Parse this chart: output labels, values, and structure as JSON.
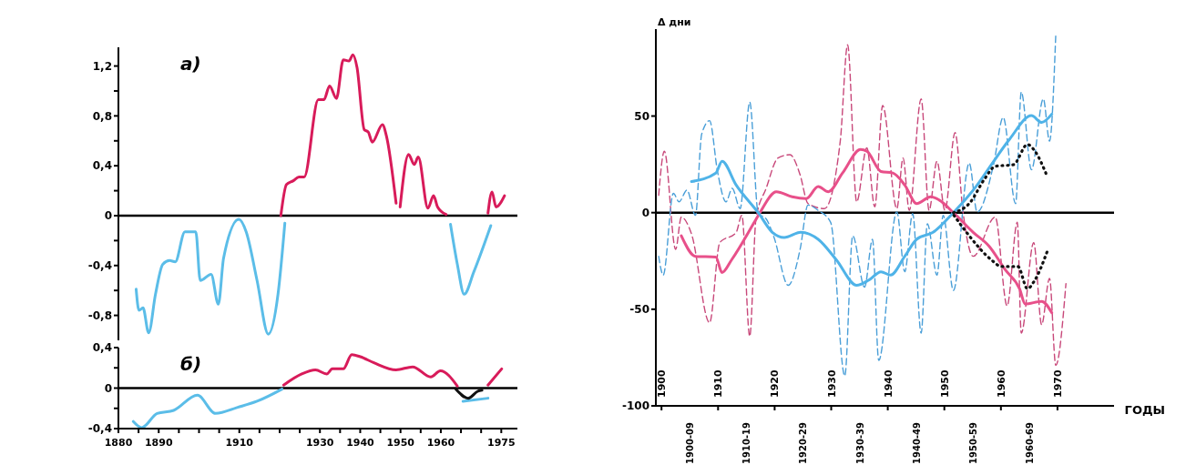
{
  "chart_data": [
    {
      "type": "line",
      "title": "а)",
      "xlim": [
        1880,
        1979
      ],
      "tick_labels": "y",
      "ylim": [
        -1.0,
        1.35
      ],
      "yticks": [
        {
          "value": -0.8,
          "label": "-0,8"
        },
        {
          "value": -0.6,
          "label": null
        },
        {
          "value": -0.4,
          "label": "-0,4"
        },
        {
          "value": -0.2,
          "label": null
        },
        0,
        {
          "value": 0.2,
          "label": null
        },
        {
          "value": 0.4,
          "label": "0,4"
        },
        {
          "value": 0.6,
          "label": null
        },
        {
          "value": 0.8,
          "label": "0,8"
        },
        {
          "value": 1.0,
          "label": null
        },
        {
          "value": 1.2,
          "label": "1,2"
        }
      ],
      "ref_lines": [
        {
          "axis": "y",
          "value": 0,
          "color": "#000000"
        }
      ],
      "series": [
        {
          "color": "#5bbde8",
          "x": [
            1884.4,
            1885.1,
            1886.1,
            1887.5,
            1889.2,
            1891,
            1892.7,
            1894.1,
            1896.5,
            1899.2,
            1900.3,
            1903,
            1904.8,
            1906.1,
            1909.9,
            1911.7,
            1914.4,
            1917.2,
            1919.6,
            1921.3,
            1940,
            1962.4,
            1964.1,
            1965.8,
            1968.2,
            1972.4
          ],
          "values": [
            -0.59,
            -0.76,
            -0.74,
            -0.94,
            -0.63,
            -0.39,
            -0.36,
            -0.37,
            -0.13,
            -0.13,
            -0.52,
            -0.47,
            -0.71,
            -0.34,
            -0.03,
            -0.13,
            -0.52,
            -0.95,
            -0.63,
            -0.06,
            null,
            -0.07,
            -0.39,
            -0.63,
            -0.45,
            -0.08
          ]
        },
        {
          "color": "#d81b5a",
          "x": [
            1920.3,
            1921.7,
            1923.4,
            1924.8,
            1926.1,
            1929.6,
            1931,
            1932.4,
            1934.1,
            1935.8,
            1937.2,
            1938.2,
            1939.2,
            1941,
            1942,
            1943,
            1945.5,
            1946.5,
            1948.9,
            1949.4,
            1949.9,
            1952,
            1953.4,
            1954.4,
            1956.8,
            1958.2,
            1959.2,
            1961.3,
            1966,
            1971.7,
            1972.7,
            1973.7,
            1975.8
          ],
          "values": [
            0,
            0.25,
            0.28,
            0.31,
            0.31,
            0.93,
            0.93,
            1.04,
            0.94,
            1.25,
            1.24,
            1.29,
            1.19,
            0.69,
            0.67,
            0.59,
            0.73,
            0.64,
            0.1,
            null,
            0.07,
            0.49,
            0.41,
            0.47,
            0.06,
            0.16,
            0.07,
            0.01,
            null,
            0.02,
            0.19,
            0.07,
            0.16
          ]
        }
      ]
    },
    {
      "type": "line",
      "title": "б)",
      "xlim": [
        1880,
        1979
      ],
      "xticks": [
        1880,
        {
          "value": 1885,
          "label": null
        },
        1890,
        {
          "value": 1895,
          "label": null
        },
        {
          "value": 1900,
          "label": null
        },
        {
          "value": 1905,
          "label": null
        },
        1910,
        {
          "value": 1915,
          "label": null
        },
        {
          "value": 1920,
          "label": null
        },
        {
          "value": 1925,
          "label": null
        },
        1930,
        {
          "value": 1935,
          "label": null
        },
        1940,
        {
          "value": 1945,
          "label": null
        },
        1950,
        {
          "value": 1955,
          "label": null
        },
        1960,
        {
          "value": 1965,
          "label": null
        },
        {
          "value": 1970,
          "label": null
        },
        1975
      ],
      "ylim": [
        -0.4,
        0.4
      ],
      "yticks": [
        {
          "value": -0.4,
          "label": "-0,4"
        },
        {
          "value": -0.2,
          "label": null
        },
        0,
        {
          "value": 0.2,
          "label": null
        },
        {
          "value": 0.4,
          "label": "0,4"
        }
      ],
      "ref_lines": [
        {
          "axis": "y",
          "value": 0,
          "color": "#000000"
        }
      ],
      "series": [
        {
          "color": "#5bbde8",
          "x": [
            1883.7,
            1885.8,
            1889.6,
            1893.7,
            1899.6,
            1904.1,
            1909.6,
            1914.4,
            1920.6,
            1940,
            1965.5,
            1971.7
          ],
          "values": [
            -0.33,
            -0.39,
            -0.25,
            -0.22,
            -0.07,
            -0.25,
            -0.19,
            -0.13,
            -0.01,
            null,
            -0.13,
            -0.1
          ]
        },
        {
          "color": "#d81b5a",
          "x": [
            1921,
            1925.5,
            1928.9,
            1931.7,
            1933.1,
            1935.8,
            1937.9,
            1940,
            1943.4,
            1948.9,
            1953,
            1957.5,
            1959.9,
            1964.1,
            1968,
            1971.7,
            1975.1
          ],
          "values": [
            0.03,
            0.14,
            0.18,
            0.14,
            0.19,
            0.19,
            0.33,
            0.31,
            0.25,
            0.18,
            0.21,
            0.11,
            0.17,
            0.02,
            null,
            0.03,
            0.19
          ]
        },
        {
          "color": "#111111",
          "x": [
            1963.7,
            1966.8,
            1969.2,
            1970.2
          ],
          "values": [
            -0.01,
            -0.1,
            -0.03,
            -0.02
          ]
        }
      ]
    },
    {
      "type": "line",
      "xlabel": "ГОДЫ",
      "ylabel": "Δ дни",
      "xlim": [
        1899,
        1980
      ],
      "xticks": [
        1900,
        1910,
        1920,
        1930,
        1940,
        1950,
        1960,
        1970
      ],
      "annotations": [
        "1900-09",
        "1910-19",
        "1920-29",
        "1930-39",
        "1940-49",
        "1950-59",
        "1960-69"
      ],
      "ylim": [
        -100,
        95
      ],
      "yticks": [
        -100,
        -50,
        0,
        50
      ],
      "ref_lines": [
        {
          "axis": "y",
          "value": 0,
          "color": "#000000"
        }
      ],
      "series": [
        {
          "color": "#c8487a",
          "line_style": "dashed",
          "x": [
            1899.5,
            1900.5,
            1902.5,
            1903.5,
            1905.3,
            1908.5,
            1910.3,
            1913.2,
            1914.2,
            1915.6,
            1916.7,
            1918.5,
            1920.6,
            1922.7,
            1924.5,
            1925.9,
            1928.8,
            1931.6,
            1932.9,
            1934.5,
            1936.3,
            1937.7,
            1939.1,
            1941.6,
            1942.7,
            1943.8,
            1945.9,
            1947.3,
            1948.7,
            1950.1,
            1951.9,
            1953.3,
            1955.1,
            1959,
            1961.1,
            1962.9,
            1963.6,
            1965.8,
            1967.2,
            1968.6,
            1969.7,
            1971.5
          ],
          "values": [
            9,
            31.8,
            -19,
            -2.3,
            -11,
            -57,
            -15.5,
            -10.2,
            -1.4,
            -64,
            -3.2,
            12.6,
            28.3,
            30,
            19.6,
            4.7,
            2.1,
            37,
            86.9,
            5.6,
            33.6,
            3,
            55.4,
            2.1,
            28.3,
            1.2,
            58.9,
            1.2,
            26.6,
            1.2,
            41.4,
            0.3,
            -22.6,
            -2.3,
            -48.2,
            -5,
            -62.4,
            -15.5,
            -58,
            -34,
            -79,
            -36.7
          ]
        },
        {
          "color": "#4a9fd8",
          "line_style": "dashed",
          "x": [
            1899.5,
            1900.3,
            1902.1,
            1903.1,
            1904.5,
            1906,
            1907.1,
            1908.5,
            1909.9,
            1911.4,
            1912.5,
            1913.9,
            1915.6,
            1917.1,
            1918.5,
            1919.9,
            1922.4,
            1924.5,
            1925.9,
            1927.7,
            1929.9,
            1932.4,
            1933.8,
            1935.9,
            1937.3,
            1938.4,
            1941.6,
            1943,
            1944.4,
            1945.9,
            1947,
            1948.7,
            1949.8,
            1951.6,
            1954.4,
            1955.8,
            1958.7,
            1960.4,
            1962.6,
            1963.6,
            1965.4,
            1967.5,
            1968.6,
            1969.7
          ],
          "values": [
            -22.6,
            -32.3,
            10,
            5.6,
            11.7,
            -1.4,
            40.6,
            47.6,
            21.3,
            5.6,
            12.6,
            2.1,
            57.2,
            -0.5,
            -3.2,
            -12.9,
            -37.6,
            -19,
            3.9,
            1.2,
            -5,
            -84.5,
            -12,
            -38.5,
            -13.8,
            -76.5,
            0.4,
            -30.6,
            -0.5,
            -62.4,
            -5.8,
            -32.3,
            -1.4,
            -40.3,
            25.7,
            0.3,
            24.8,
            49.3,
            4.7,
            62.4,
            22.2,
            58.9,
            37,
            92.1
          ]
        },
        {
          "color": "#e8508a",
          "x": [
            1903.5,
            1906,
            1909.6,
            1910.7,
            1912.4,
            1916.4,
            1917.4,
            1920.3,
            1923.1,
            1925.6,
            1927.7,
            1929.5,
            1932,
            1935.2,
            1936.3,
            1938.8,
            1940.9,
            1943,
            1945.1,
            1947.6,
            1949.1,
            1951.6,
            1955.1,
            1957.9,
            1960.8,
            1963.3,
            1964.3,
            1967.2,
            1969
          ],
          "values": [
            -12,
            -22.6,
            -23,
            -31,
            -24.4,
            -5,
            0,
            10.8,
            8.2,
            7.3,
            13.5,
            10.8,
            20.5,
            32.7,
            31.8,
            21.3,
            20.5,
            14.3,
            4.7,
            8.2,
            6.5,
            0,
            -10.2,
            -17.3,
            -29.7,
            -39.4,
            -47.3,
            -45.9,
            -51.8
          ]
        },
        {
          "color": "#4fb3e8",
          "x": [
            1905.3,
            1909.6,
            1910.7,
            1913.2,
            1917.1,
            1919.6,
            1921.7,
            1924.6,
            1927.7,
            1930.9,
            1934.5,
            1936.6,
            1938.8,
            1940.5,
            1943,
            1945.1,
            1948,
            1951.6,
            1955.8,
            1958.3,
            1961.5,
            1965.4,
            1967.2,
            1969
          ],
          "values": [
            16.1,
            20.5,
            26.6,
            14.3,
            0,
            -10.2,
            -12.9,
            -10.2,
            -13.8,
            -24.4,
            -37.6,
            -35,
            -30.6,
            -32.3,
            -22.6,
            -13.8,
            -10.2,
            0,
            14.3,
            24.8,
            37.9,
            50.2,
            46.7,
            51
          ]
        },
        {
          "color": "#111111",
          "line_style": "dotted",
          "x": [
            1951.6,
            1954.4,
            1957.2,
            1959,
            1962.2,
            1964.7,
            1965.8,
            1968.2
          ],
          "values": [
            0,
            4.7,
            17.8,
            24,
            24.8,
            35.3,
            32.7,
            18.7
          ]
        },
        {
          "color": "#111111",
          "line_style": "dotted",
          "x": [
            1951.7,
            1954.4,
            1958.3,
            1960.1,
            1963,
            1964.7,
            1965.8,
            1968.2
          ],
          "values": [
            -1.4,
            -12,
            -24.4,
            -27.9,
            -27.9,
            -39.4,
            -35.9,
            -20
          ]
        }
      ]
    }
  ]
}
